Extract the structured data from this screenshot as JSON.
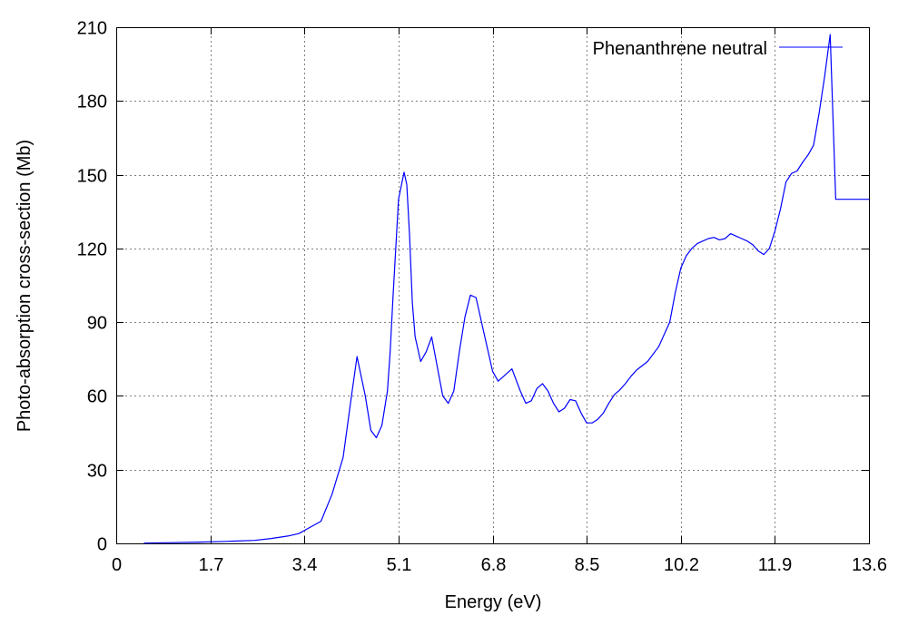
{
  "chart_data": {
    "type": "line",
    "xlabel": "Energy (eV)",
    "ylabel": "Photo-absorption cross-section (Mb)",
    "xlim": [
      0,
      13.6
    ],
    "ylim": [
      0,
      210
    ],
    "x_ticks": [
      "0",
      "1.7",
      "3.4",
      "5.1",
      "6.8",
      "8.5",
      "10.2",
      "11.9",
      "13.6"
    ],
    "y_ticks": [
      "0",
      "30",
      "60",
      "90",
      "120",
      "150",
      "180",
      "210"
    ],
    "grid": true,
    "legend_position": "top-right",
    "series": [
      {
        "name": "Phenanthrene neutral",
        "color": "#0000ff",
        "x": [
          0.5,
          1.0,
          1.5,
          2.0,
          2.5,
          2.8,
          3.1,
          3.3,
          3.5,
          3.7,
          3.9,
          4.1,
          4.25,
          4.35,
          4.5,
          4.6,
          4.7,
          4.8,
          4.9,
          4.95,
          5.0,
          5.1,
          5.2,
          5.25,
          5.3,
          5.35,
          5.4,
          5.5,
          5.6,
          5.7,
          5.8,
          5.9,
          6.0,
          6.1,
          6.2,
          6.3,
          6.4,
          6.5,
          6.55,
          6.6,
          6.7,
          6.8,
          6.9,
          7.0,
          7.1,
          7.15,
          7.2,
          7.3,
          7.4,
          7.5,
          7.6,
          7.7,
          7.8,
          7.9,
          8.0,
          8.1,
          8.2,
          8.3,
          8.4,
          8.5,
          8.6,
          8.7,
          8.8,
          8.9,
          9.0,
          9.1,
          9.2,
          9.3,
          9.4,
          9.6,
          9.8,
          10.0,
          10.1,
          10.2,
          10.3,
          10.4,
          10.5,
          10.6,
          10.7,
          10.8,
          10.9,
          11.0,
          11.1,
          11.2,
          11.3,
          11.4,
          11.5,
          11.6,
          11.7,
          11.8,
          11.9,
          12.0,
          12.1,
          12.2,
          12.3,
          12.4,
          12.5,
          12.6,
          12.7,
          12.8,
          12.9,
          13.0,
          13.1,
          13.2,
          13.3,
          13.4,
          13.5,
          13.6
        ],
        "values": [
          0.1,
          0.3,
          0.5,
          0.8,
          1.2,
          2.0,
          3.0,
          4.0,
          6.5,
          9.0,
          20.0,
          35.0,
          60.0,
          76.0,
          60.0,
          46.0,
          43.0,
          48.0,
          62.0,
          78.0,
          100.0,
          140.0,
          151.0,
          146.0,
          125.0,
          98.0,
          84.0,
          74.0,
          78.0,
          84.0,
          72.0,
          60.0,
          57.0,
          62.0,
          78.0,
          92.0,
          101.0,
          100.0,
          95.0,
          90.0,
          80.0,
          70.0,
          66.0,
          68.0,
          70.0,
          71.0,
          68.0,
          62.0,
          57.0,
          58.0,
          63.0,
          65.0,
          62.0,
          57.0,
          53.5,
          55.0,
          58.5,
          58.0,
          53.0,
          49.0,
          49.0,
          50.5,
          53.0,
          57.0,
          60.5,
          62.5,
          65.0,
          68.0,
          70.5,
          74.0,
          80.0,
          90.0,
          102.0,
          112.0,
          117.0,
          120.0,
          122.0,
          123.0,
          124.0,
          124.5,
          123.5,
          124.0,
          126.0,
          125.0,
          124.0,
          123.0,
          121.5,
          119.0,
          117.5,
          120.0,
          127.0,
          136.0,
          147.0,
          150.5,
          151.5,
          155.0,
          158.0,
          162.0,
          175.0,
          190.0,
          207.0,
          140.0,
          140.0,
          140.0,
          140.0,
          140.0,
          140.0,
          140.0
        ]
      }
    ]
  }
}
